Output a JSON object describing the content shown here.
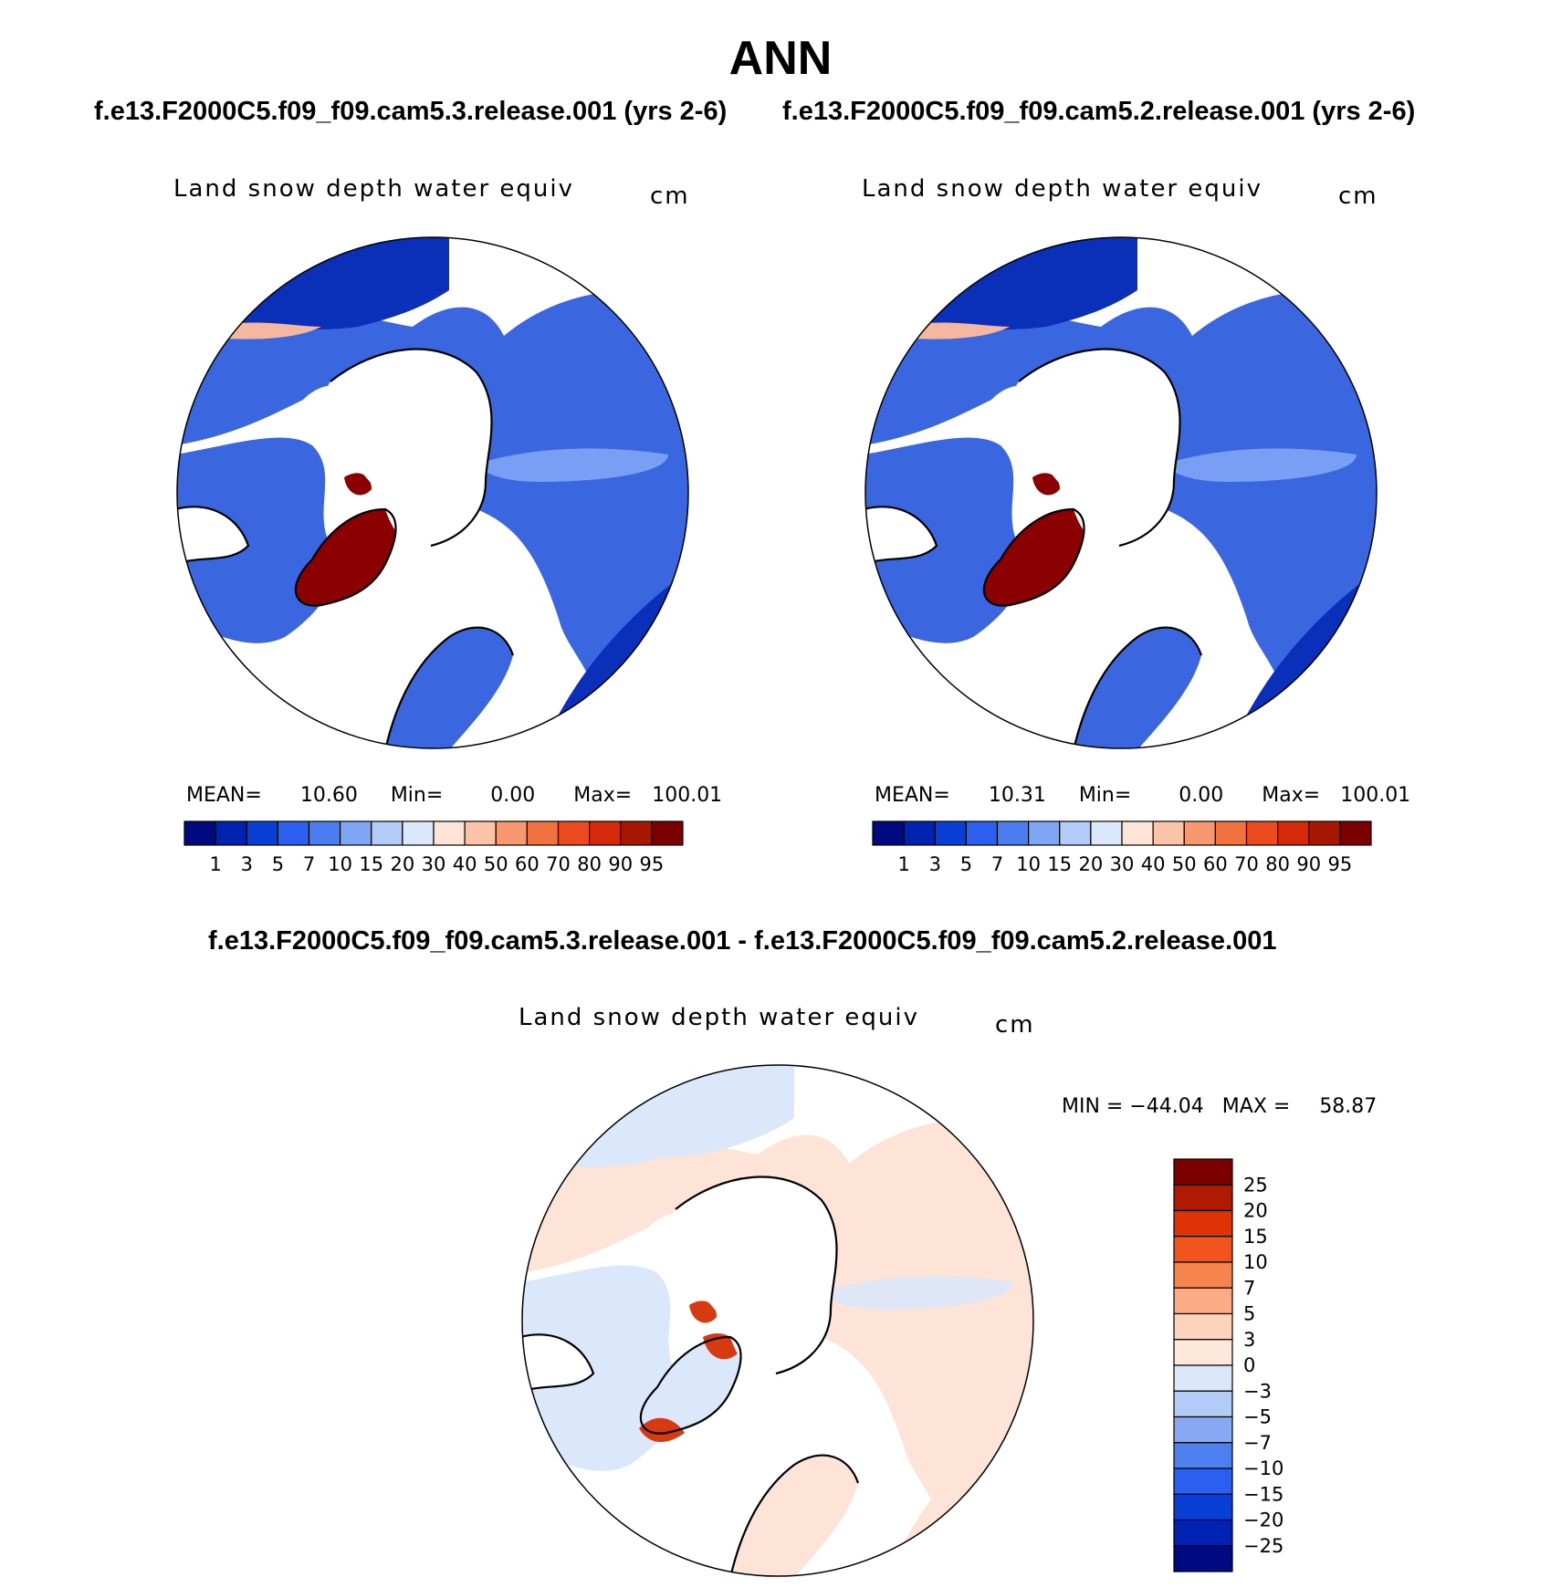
{
  "season": "ANN",
  "header": {
    "case1": "f.e13.F2000C5.f09_f09.cam5.3.release.001 (yrs 2-6)",
    "case2": "f.e13.F2000C5.f09_f09.cam5.2.release.001 (yrs 2-6)",
    "diff_title": "f.e13.F2000C5.f09_f09.cam5.3.release.001 - f.e13.F2000C5.f09_f09.cam5.2.release.001"
  },
  "panels": [
    {
      "variable": "Land snow depth water equiv",
      "units": "cm",
      "mean_label": "MEAN=",
      "mean": "10.60",
      "min_label": "Min=",
      "min": "0.00",
      "max_label": "Max=",
      "max": "100.01"
    },
    {
      "variable": "Land snow depth water equiv",
      "units": "cm",
      "mean_label": "MEAN=",
      "mean": "10.31",
      "min_label": "Min=",
      "min": "0.00",
      "max_label": "Max=",
      "max": "100.01"
    }
  ],
  "diff_panel": {
    "variable": "Land snow depth water equiv",
    "units": "cm",
    "min_label": "MIN =",
    "min": "−44.04",
    "max_label": "MAX =",
    "max": "58.87"
  },
  "colorbar": {
    "levels": [
      "1",
      "3",
      "5",
      "7",
      "10",
      "15",
      "20",
      "30",
      "40",
      "50",
      "60",
      "70",
      "80",
      "90",
      "95"
    ],
    "colors": [
      "#000a80",
      "#0022b0",
      "#0a3fd6",
      "#2a5ff0",
      "#4a7ef0",
      "#7fa5f5",
      "#b3cbf7",
      "#dbe7fa",
      "#fde4d6",
      "#fbc3a8",
      "#f7986e",
      "#f2723f",
      "#ea4a1d",
      "#d42a0b",
      "#a81800",
      "#7d0000"
    ]
  },
  "diff_colorbar": {
    "levels": [
      "25",
      "20",
      "15",
      "10",
      "7",
      "5",
      "3",
      "0",
      "−3",
      "−5",
      "−7",
      "−10",
      "−15",
      "−20",
      "−25"
    ],
    "colors": [
      "#7d0000",
      "#b01a00",
      "#dd3306",
      "#f2541e",
      "#f7834d",
      "#fbac86",
      "#fcd3bd",
      "#fde8da",
      "#dbe7fa",
      "#b3cbf7",
      "#87a9f5",
      "#4f80ef",
      "#2a5ff0",
      "#0a3fd6",
      "#0022b0",
      "#000a80"
    ]
  },
  "map_colors": {
    "snow_low": "#0a2fb8",
    "snow_mid": "#3a66e0",
    "snow_light": "#7fa5f5",
    "snow_high": "#8b0000",
    "diff_neg": "#dbe7fa",
    "diff_pos": "#fde4d6",
    "diff_red": "#d63a10"
  }
}
